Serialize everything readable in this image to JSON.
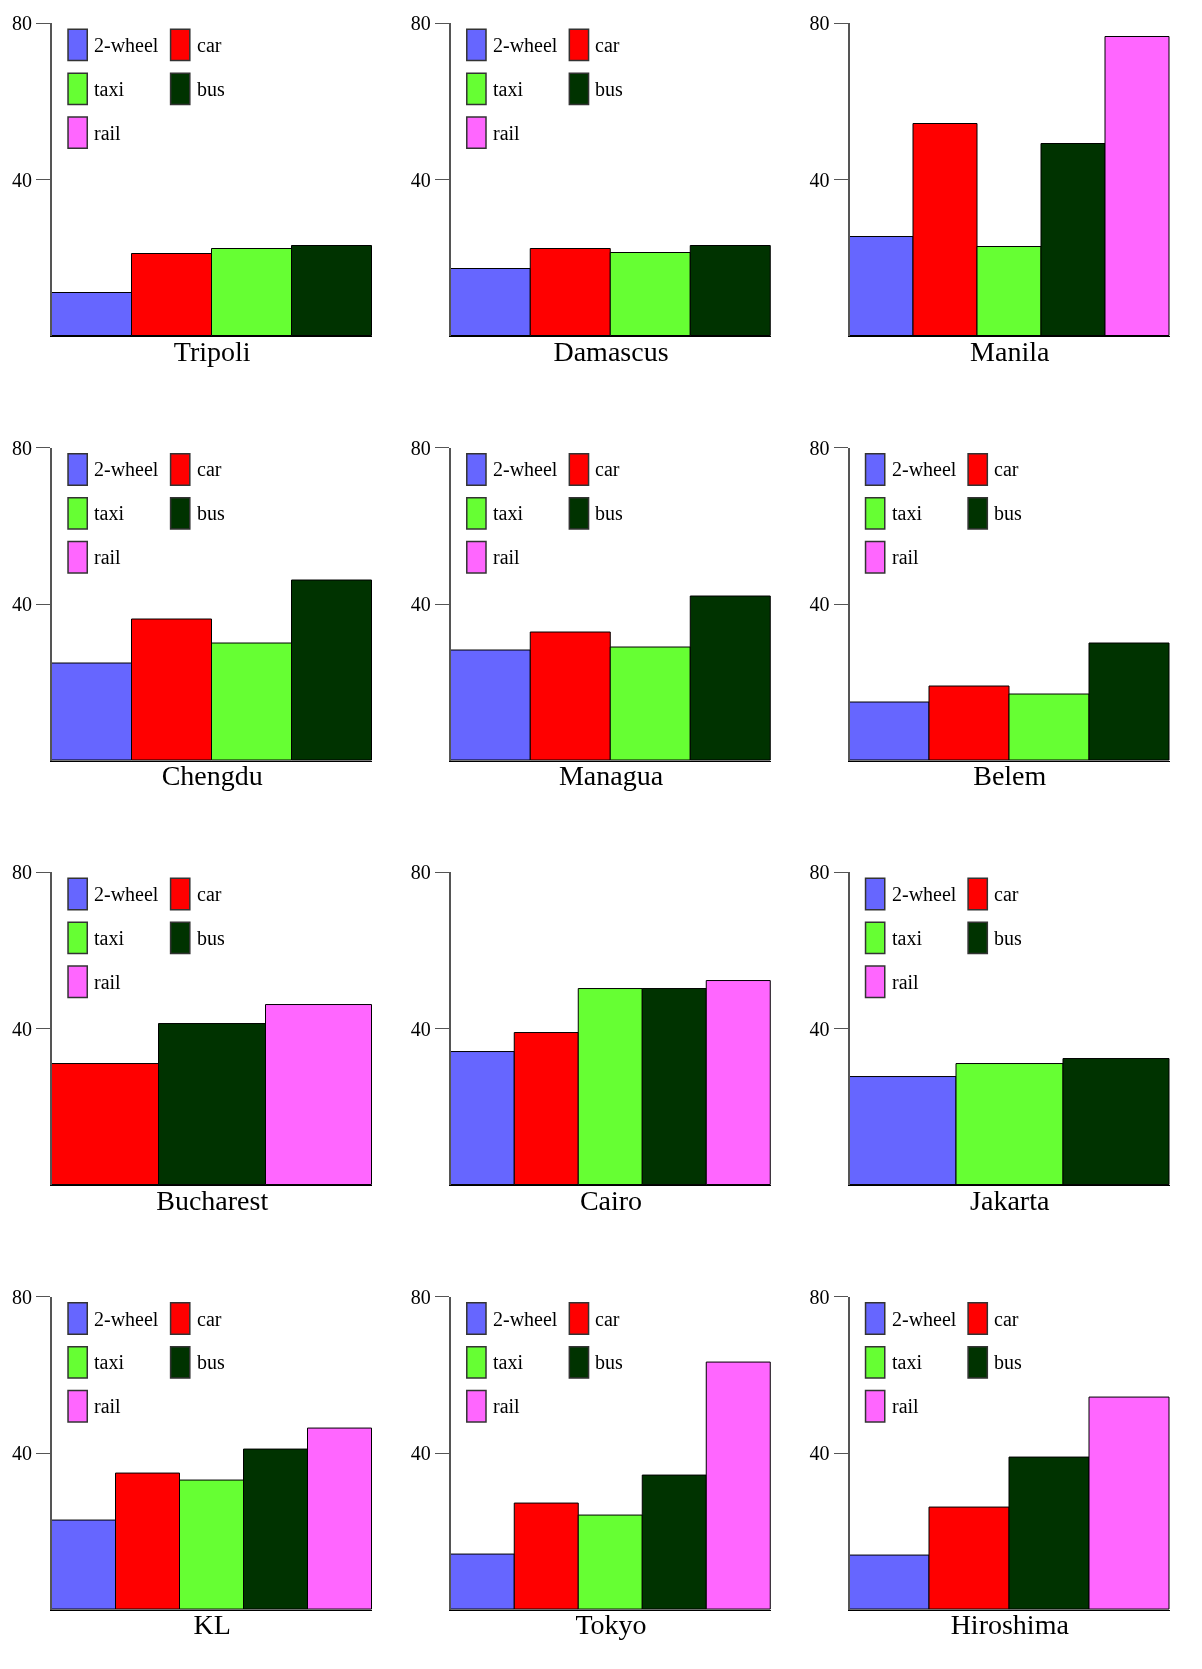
{
  "chart_data": [
    {
      "type": "bar",
      "xlabel": "Tripoli",
      "categories": [
        null,
        null,
        null,
        null
      ],
      "ylim": [
        0,
        80
      ],
      "yticks": [
        40,
        80
      ],
      "tick_labels": "y",
      "legend": "top left",
      "series": [
        {
          "name": "2-wheel",
          "color": "#6666ff",
          "values": [
            11.2,
            null,
            null,
            null
          ]
        },
        {
          "name": "car",
          "color": "#ff0000",
          "values": [
            null,
            21.1,
            null,
            null
          ]
        },
        {
          "name": "taxi",
          "color": "#66ff33",
          "values": [
            null,
            null,
            22.4,
            null
          ]
        },
        {
          "name": "bus",
          "color": "#003300",
          "values": [
            null,
            null,
            null,
            23.1
          ]
        },
        {
          "name": "rail",
          "color": "#ff66ff",
          "values": [
            null,
            null,
            null,
            null
          ]
        }
      ]
    },
    {
      "type": "bar",
      "xlabel": "Damascus",
      "categories": [
        null,
        null,
        null,
        null
      ],
      "ylim": [
        0,
        80
      ],
      "yticks": [
        40,
        80
      ],
      "tick_labels": "y",
      "legend": "top left",
      "series": [
        {
          "name": "2-wheel",
          "color": "#6666ff",
          "values": [
            17.3,
            null,
            null,
            null
          ]
        },
        {
          "name": "car",
          "color": "#ff0000",
          "values": [
            null,
            22.2,
            null,
            null
          ]
        },
        {
          "name": "taxi",
          "color": "#66ff33",
          "values": [
            null,
            null,
            21.2,
            null
          ]
        },
        {
          "name": "bus",
          "color": "#003300",
          "values": [
            null,
            null,
            null,
            23.2
          ]
        },
        {
          "name": "rail",
          "color": "#ff66ff",
          "values": [
            null,
            null,
            null,
            null
          ]
        }
      ]
    },
    {
      "type": "bar",
      "xlabel": "Manila",
      "categories": [
        null,
        null,
        null,
        null,
        null
      ],
      "ylim": [
        0,
        80
      ],
      "yticks": [
        40,
        80
      ],
      "tick_labels": "y",
      "series": [
        {
          "color": "#6666ff",
          "values": [
            25.3,
            null,
            null,
            null,
            null
          ]
        },
        {
          "color": "#ff0000",
          "values": [
            null,
            54.2,
            null,
            null,
            null
          ]
        },
        {
          "color": "#66ff33",
          "values": [
            null,
            null,
            22.9,
            null,
            null
          ]
        },
        {
          "color": "#003300",
          "values": [
            null,
            null,
            null,
            49.2,
            null
          ]
        },
        {
          "color": "#ff66ff",
          "values": [
            null,
            null,
            null,
            null,
            76.5
          ]
        }
      ]
    },
    {
      "type": "bar",
      "xlabel": "Chengdu",
      "categories": [
        null,
        null,
        null,
        null
      ],
      "ylim": [
        0,
        80
      ],
      "yticks": [
        40,
        80
      ],
      "tick_labels": "y",
      "legend": "top left",
      "series": [
        {
          "name": "2-wheel",
          "color": "#6666ff",
          "values": [
            24.8,
            null,
            null,
            null
          ]
        },
        {
          "name": "car",
          "color": "#ff0000",
          "values": [
            null,
            36.0,
            null,
            null
          ]
        },
        {
          "name": "taxi",
          "color": "#66ff33",
          "values": [
            null,
            null,
            30.1,
            null
          ]
        },
        {
          "name": "bus",
          "color": "#003300",
          "values": [
            null,
            null,
            null,
            46.0
          ]
        },
        {
          "name": "rail",
          "color": "#ff66ff",
          "values": [
            null,
            null,
            null,
            null
          ]
        }
      ]
    },
    {
      "type": "bar",
      "xlabel": "Managua",
      "categories": [
        null,
        null,
        null,
        null
      ],
      "ylim": [
        0,
        80
      ],
      "yticks": [
        40,
        80
      ],
      "tick_labels": "y",
      "legend": "top left",
      "series": [
        {
          "name": "2-wheel",
          "color": "#6666ff",
          "values": [
            28.1,
            null,
            null,
            null
          ]
        },
        {
          "name": "car",
          "color": "#ff0000",
          "values": [
            null,
            32.9,
            null,
            null
          ]
        },
        {
          "name": "taxi",
          "color": "#66ff33",
          "values": [
            null,
            null,
            28.9,
            null
          ]
        },
        {
          "name": "bus",
          "color": "#003300",
          "values": [
            null,
            null,
            null,
            42.0
          ]
        },
        {
          "name": "rail",
          "color": "#ff66ff",
          "values": [
            null,
            null,
            null,
            null
          ]
        }
      ]
    },
    {
      "type": "bar",
      "xlabel": "Belem",
      "categories": [
        null,
        null,
        null,
        null
      ],
      "ylim": [
        0,
        80
      ],
      "yticks": [
        40,
        80
      ],
      "tick_labels": "y",
      "legend": "top left",
      "series": [
        {
          "name": "2-wheel",
          "color": "#6666ff",
          "values": [
            14.9,
            null,
            null,
            null
          ]
        },
        {
          "name": "car",
          "color": "#ff0000",
          "values": [
            null,
            18.9,
            null,
            null
          ]
        },
        {
          "name": "taxi",
          "color": "#66ff33",
          "values": [
            null,
            null,
            16.9,
            null
          ]
        },
        {
          "name": "bus",
          "color": "#003300",
          "values": [
            null,
            null,
            null,
            30.1
          ]
        },
        {
          "name": "rail",
          "color": "#ff66ff",
          "values": [
            null,
            null,
            null,
            null
          ]
        }
      ]
    },
    {
      "type": "bar",
      "xlabel": "Bucharest",
      "categories": [
        null,
        null,
        null
      ],
      "ylim": [
        0,
        80
      ],
      "yticks": [
        40,
        80
      ],
      "tick_labels": "y",
      "legend": "top left",
      "series": [
        {
          "name": "2-wheel",
          "color": "#6666ff",
          "values": [
            null,
            null,
            null
          ]
        },
        {
          "name": "car",
          "color": "#ff0000",
          "values": [
            31.1,
            null,
            null
          ]
        },
        {
          "name": "taxi",
          "color": "#66ff33",
          "values": [
            null,
            null,
            null
          ]
        },
        {
          "name": "bus",
          "color": "#003300",
          "values": [
            null,
            41.2,
            null
          ]
        },
        {
          "name": "rail",
          "color": "#ff66ff",
          "values": [
            null,
            null,
            46.0
          ]
        }
      ]
    },
    {
      "type": "bar",
      "xlabel": "Cairo",
      "categories": [
        null,
        null,
        null,
        null,
        null
      ],
      "ylim": [
        0,
        80
      ],
      "yticks": [
        40,
        80
      ],
      "tick_labels": "y",
      "series": [
        {
          "color": "#6666ff",
          "values": [
            34.0,
            null,
            null,
            null,
            null
          ]
        },
        {
          "color": "#ff0000",
          "values": [
            null,
            39.0,
            null,
            null,
            null
          ]
        },
        {
          "color": "#66ff33",
          "values": [
            null,
            null,
            50.2,
            null,
            null
          ]
        },
        {
          "color": "#003300",
          "values": [
            null,
            null,
            null,
            50.2,
            null
          ]
        },
        {
          "color": "#ff66ff",
          "values": [
            null,
            null,
            null,
            null,
            52.2
          ]
        }
      ]
    },
    {
      "type": "bar",
      "xlabel": "Jakarta",
      "categories": [
        null,
        null,
        null
      ],
      "ylim": [
        0,
        80
      ],
      "yticks": [
        40,
        80
      ],
      "tick_labels": "y",
      "legend": "top left",
      "series": [
        {
          "name": "2-wheel",
          "color": "#6666ff",
          "values": [
            27.6,
            null,
            null
          ]
        },
        {
          "name": "car",
          "color": "#ff0000",
          "values": [
            null,
            null,
            null
          ]
        },
        {
          "name": "taxi",
          "color": "#66ff33",
          "values": [
            null,
            31.1,
            null
          ]
        },
        {
          "name": "bus",
          "color": "#003300",
          "values": [
            null,
            null,
            32.3
          ]
        },
        {
          "name": "rail",
          "color": "#ff66ff",
          "values": [
            null,
            null,
            null
          ]
        }
      ]
    },
    {
      "type": "bar",
      "xlabel": "KL",
      "categories": [
        null,
        null,
        null,
        null,
        null
      ],
      "ylim": [
        0,
        80
      ],
      "yticks": [
        40,
        80
      ],
      "tick_labels": "y",
      "legend": "top left",
      "series": [
        {
          "name": "2-wheel",
          "color": "#6666ff",
          "values": [
            22.9,
            null,
            null,
            null,
            null
          ]
        },
        {
          "name": "car",
          "color": "#ff0000",
          "values": [
            null,
            34.8,
            null,
            null,
            null
          ]
        },
        {
          "name": "taxi",
          "color": "#66ff33",
          "values": [
            null,
            null,
            33.0,
            null,
            null
          ]
        },
        {
          "name": "bus",
          "color": "#003300",
          "values": [
            null,
            null,
            null,
            41.0,
            null
          ]
        },
        {
          "name": "rail",
          "color": "#ff66ff",
          "values": [
            null,
            null,
            null,
            null,
            46.2
          ]
        }
      ]
    },
    {
      "type": "bar",
      "xlabel": "Tokyo",
      "categories": [
        null,
        null,
        null,
        null,
        null
      ],
      "ylim": [
        0,
        80
      ],
      "yticks": [
        40,
        80
      ],
      "tick_labels": "y",
      "legend": "top left",
      "series": [
        {
          "name": "2-wheel",
          "color": "#6666ff",
          "values": [
            14.1,
            null,
            null,
            null,
            null
          ]
        },
        {
          "name": "car",
          "color": "#ff0000",
          "values": [
            null,
            27.2,
            null,
            null,
            null
          ]
        },
        {
          "name": "taxi",
          "color": "#66ff33",
          "values": [
            null,
            null,
            24.0,
            null,
            null
          ]
        },
        {
          "name": "bus",
          "color": "#003300",
          "values": [
            null,
            null,
            null,
            34.3,
            null
          ]
        },
        {
          "name": "rail",
          "color": "#ff66ff",
          "values": [
            null,
            null,
            null,
            null,
            63.2
          ]
        }
      ]
    },
    {
      "type": "bar",
      "xlabel": "Hiroshima",
      "categories": [
        null,
        null,
        null,
        null
      ],
      "ylim": [
        0,
        80
      ],
      "yticks": [
        40,
        80
      ],
      "tick_labels": "y",
      "legend": "top left",
      "series": [
        {
          "name": "2-wheel",
          "color": "#6666ff",
          "values": [
            13.9,
            null,
            null,
            null
          ]
        },
        {
          "name": "car",
          "color": "#ff0000",
          "values": [
            null,
            26.1,
            null,
            null
          ]
        },
        {
          "name": "taxi",
          "color": "#66ff33",
          "values": [
            null,
            null,
            null,
            null
          ]
        },
        {
          "name": "bus",
          "color": "#003300",
          "values": [
            null,
            null,
            39.0,
            null
          ]
        },
        {
          "name": "rail",
          "color": "#ff66ff",
          "values": [
            null,
            null,
            null,
            54.2
          ]
        }
      ]
    }
  ]
}
